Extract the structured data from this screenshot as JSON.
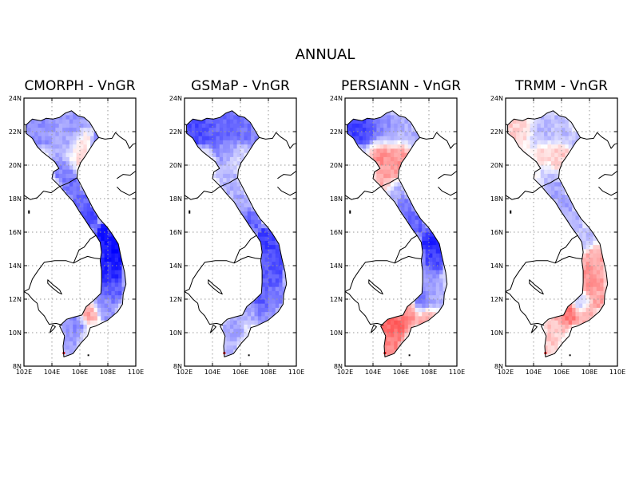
{
  "figure": {
    "title": "ANNUAL"
  },
  "chart_data": [
    {
      "type": "heatmap",
      "title": "CMORPH - VnGR",
      "xlim": [
        102,
        110
      ],
      "ylim": [
        8,
        24
      ],
      "xticks": [
        "102E",
        "104E",
        "106E",
        "108E",
        "110E"
      ],
      "yticks": [
        "8N",
        "10N",
        "12N",
        "14N",
        "16N",
        "18N",
        "20N",
        "22N",
        "24N"
      ],
      "grid": true,
      "colors": {
        "negative": "#0000ff",
        "positive": "#ff0000"
      },
      "patches": [
        {
          "lon": 103.0,
          "lat": 22.2,
          "r": 0.9,
          "v": -0.45
        },
        {
          "lon": 104.6,
          "lat": 22.0,
          "r": 0.9,
          "v": -0.35
        },
        {
          "lon": 105.8,
          "lat": 22.3,
          "r": 0.8,
          "v": -0.4
        },
        {
          "lon": 106.3,
          "lat": 21.6,
          "r": 0.5,
          "v": 0.25
        },
        {
          "lon": 107.4,
          "lat": 21.4,
          "r": 0.5,
          "v": -0.55
        },
        {
          "lon": 104.9,
          "lat": 20.9,
          "r": 0.6,
          "v": -0.3
        },
        {
          "lon": 105.7,
          "lat": 20.6,
          "r": 0.6,
          "v": 0.15
        },
        {
          "lon": 104.8,
          "lat": 19.8,
          "r": 0.6,
          "v": -0.5
        },
        {
          "lon": 105.4,
          "lat": 18.8,
          "r": 0.5,
          "v": -0.55
        },
        {
          "lon": 106.1,
          "lat": 17.8,
          "r": 0.5,
          "v": -0.6
        },
        {
          "lon": 106.6,
          "lat": 16.9,
          "r": 0.5,
          "v": -0.7
        },
        {
          "lon": 107.8,
          "lat": 15.8,
          "r": 0.6,
          "v": -0.9
        },
        {
          "lon": 108.5,
          "lat": 14.9,
          "r": 0.7,
          "v": -0.95
        },
        {
          "lon": 108.1,
          "lat": 13.6,
          "r": 0.7,
          "v": -0.85
        },
        {
          "lon": 108.4,
          "lat": 12.5,
          "r": 0.6,
          "v": -0.6
        },
        {
          "lon": 107.5,
          "lat": 11.9,
          "r": 0.5,
          "v": -0.45
        },
        {
          "lon": 106.8,
          "lat": 11.3,
          "r": 0.5,
          "v": 0.35
        },
        {
          "lon": 107.9,
          "lat": 11.3,
          "r": 0.5,
          "v": -0.4
        },
        {
          "lon": 105.5,
          "lat": 10.3,
          "r": 0.6,
          "v": -0.45
        },
        {
          "lon": 105.2,
          "lat": 9.2,
          "r": 0.5,
          "v": -0.35
        }
      ]
    },
    {
      "type": "heatmap",
      "title": "GSMaP - VnGR",
      "xlim": [
        102,
        110
      ],
      "ylim": [
        8,
        24
      ],
      "xticks": [
        "102E",
        "104E",
        "106E",
        "108E",
        "110E"
      ],
      "yticks": [
        "8N",
        "10N",
        "12N",
        "14N",
        "16N",
        "18N",
        "20N",
        "22N",
        "24N"
      ],
      "grid": true,
      "colors": {
        "negative": "#0000ff",
        "positive": "#ff0000"
      },
      "patches": [
        {
          "lon": 103.0,
          "lat": 22.3,
          "r": 0.9,
          "v": -0.7
        },
        {
          "lon": 104.7,
          "lat": 22.1,
          "r": 0.9,
          "v": -0.6
        },
        {
          "lon": 105.9,
          "lat": 22.2,
          "r": 0.8,
          "v": -0.55
        },
        {
          "lon": 107.3,
          "lat": 21.4,
          "r": 0.5,
          "v": -0.45
        },
        {
          "lon": 104.9,
          "lat": 20.9,
          "r": 0.6,
          "v": -0.4
        },
        {
          "lon": 105.9,
          "lat": 20.6,
          "r": 0.6,
          "v": -0.15
        },
        {
          "lon": 104.9,
          "lat": 19.6,
          "r": 0.6,
          "v": -0.25
        },
        {
          "lon": 105.4,
          "lat": 18.7,
          "r": 0.5,
          "v": -0.3
        },
        {
          "lon": 106.1,
          "lat": 17.7,
          "r": 0.5,
          "v": -0.35
        },
        {
          "lon": 106.8,
          "lat": 16.7,
          "r": 0.5,
          "v": -0.6
        },
        {
          "lon": 107.9,
          "lat": 15.6,
          "r": 0.6,
          "v": -0.75
        },
        {
          "lon": 108.4,
          "lat": 14.4,
          "r": 0.7,
          "v": -0.7
        },
        {
          "lon": 108.1,
          "lat": 13.2,
          "r": 0.7,
          "v": -0.65
        },
        {
          "lon": 108.5,
          "lat": 12.3,
          "r": 0.6,
          "v": -0.5
        },
        {
          "lon": 107.5,
          "lat": 11.7,
          "r": 0.6,
          "v": -0.65
        },
        {
          "lon": 106.7,
          "lat": 11.2,
          "r": 0.5,
          "v": -0.3
        },
        {
          "lon": 107.9,
          "lat": 11.0,
          "r": 0.5,
          "v": -0.4
        },
        {
          "lon": 105.5,
          "lat": 10.3,
          "r": 0.6,
          "v": -0.35
        },
        {
          "lon": 105.1,
          "lat": 9.2,
          "r": 0.5,
          "v": -0.3
        }
      ]
    },
    {
      "type": "heatmap",
      "title": "PERSIANN - VnGR",
      "xlim": [
        102,
        110
      ],
      "ylim": [
        8,
        24
      ],
      "xticks": [
        "102E",
        "104E",
        "106E",
        "108E",
        "110E"
      ],
      "yticks": [
        "8N",
        "10N",
        "12N",
        "14N",
        "16N",
        "18N",
        "20N",
        "22N",
        "24N"
      ],
      "grid": true,
      "colors": {
        "negative": "#0000ff",
        "positive": "#ff0000"
      },
      "patches": [
        {
          "lon": 103.0,
          "lat": 22.3,
          "r": 0.9,
          "v": -0.75
        },
        {
          "lon": 104.6,
          "lat": 22.1,
          "r": 0.8,
          "v": -0.5
        },
        {
          "lon": 105.9,
          "lat": 22.1,
          "r": 0.8,
          "v": -0.3
        },
        {
          "lon": 107.3,
          "lat": 21.4,
          "r": 0.5,
          "v": -0.35
        },
        {
          "lon": 104.7,
          "lat": 20.7,
          "r": 0.7,
          "v": 0.45
        },
        {
          "lon": 105.9,
          "lat": 20.5,
          "r": 0.7,
          "v": 0.4
        },
        {
          "lon": 105.0,
          "lat": 19.4,
          "r": 0.6,
          "v": 0.35
        },
        {
          "lon": 105.6,
          "lat": 18.5,
          "r": 0.5,
          "v": -0.3
        },
        {
          "lon": 106.3,
          "lat": 17.5,
          "r": 0.5,
          "v": -0.5
        },
        {
          "lon": 107.0,
          "lat": 16.5,
          "r": 0.5,
          "v": -0.6
        },
        {
          "lon": 108.2,
          "lat": 15.5,
          "r": 0.6,
          "v": -0.85
        },
        {
          "lon": 108.4,
          "lat": 14.4,
          "r": 0.6,
          "v": -0.75
        },
        {
          "lon": 108.0,
          "lat": 13.1,
          "r": 0.7,
          "v": -0.4
        },
        {
          "lon": 108.5,
          "lat": 12.2,
          "r": 0.6,
          "v": -0.3
        },
        {
          "lon": 107.5,
          "lat": 11.8,
          "r": 0.5,
          "v": -0.6
        },
        {
          "lon": 106.5,
          "lat": 11.2,
          "r": 0.6,
          "v": 0.45
        },
        {
          "lon": 105.4,
          "lat": 10.5,
          "r": 0.8,
          "v": 0.6
        },
        {
          "lon": 107.8,
          "lat": 11.0,
          "r": 0.5,
          "v": 0.3
        },
        {
          "lon": 105.1,
          "lat": 9.3,
          "r": 0.6,
          "v": 0.45
        }
      ]
    },
    {
      "type": "heatmap",
      "title": "TRMM - VnGR",
      "xlim": [
        102,
        110
      ],
      "ylim": [
        8,
        24
      ],
      "xticks": [
        "102E",
        "104E",
        "106E",
        "108E",
        "110E"
      ],
      "yticks": [
        "8N",
        "10N",
        "12N",
        "14N",
        "16N",
        "18N",
        "20N",
        "22N",
        "24N"
      ],
      "grid": true,
      "colors": {
        "negative": "#0000ff",
        "positive": "#ff0000"
      },
      "patches": [
        {
          "lon": 103.0,
          "lat": 22.2,
          "r": 0.8,
          "v": 0.2
        },
        {
          "lon": 104.6,
          "lat": 22.0,
          "r": 0.8,
          "v": -0.3
        },
        {
          "lon": 105.8,
          "lat": 22.2,
          "r": 0.7,
          "v": -0.25
        },
        {
          "lon": 107.3,
          "lat": 21.4,
          "r": 0.5,
          "v": -0.25
        },
        {
          "lon": 104.9,
          "lat": 20.8,
          "r": 0.6,
          "v": 0.2
        },
        {
          "lon": 105.8,
          "lat": 20.5,
          "r": 0.6,
          "v": 0.2
        },
        {
          "lon": 105.0,
          "lat": 19.5,
          "r": 0.5,
          "v": -0.2
        },
        {
          "lon": 105.5,
          "lat": 18.6,
          "r": 0.5,
          "v": -0.35
        },
        {
          "lon": 106.2,
          "lat": 17.6,
          "r": 0.5,
          "v": -0.35
        },
        {
          "lon": 106.9,
          "lat": 16.6,
          "r": 0.5,
          "v": -0.3
        },
        {
          "lon": 107.9,
          "lat": 15.6,
          "r": 0.5,
          "v": -0.25
        },
        {
          "lon": 108.4,
          "lat": 14.5,
          "r": 0.6,
          "v": 0.35
        },
        {
          "lon": 108.1,
          "lat": 13.3,
          "r": 0.7,
          "v": 0.4
        },
        {
          "lon": 108.5,
          "lat": 12.2,
          "r": 0.6,
          "v": 0.35
        },
        {
          "lon": 107.4,
          "lat": 11.8,
          "r": 0.5,
          "v": -0.25
        },
        {
          "lon": 106.4,
          "lat": 11.2,
          "r": 0.6,
          "v": 0.55
        },
        {
          "lon": 107.7,
          "lat": 11.0,
          "r": 0.5,
          "v": 0.3
        },
        {
          "lon": 105.6,
          "lat": 10.3,
          "r": 0.6,
          "v": 0.2
        },
        {
          "lon": 105.1,
          "lat": 9.2,
          "r": 0.5,
          "v": 0.2
        }
      ]
    }
  ]
}
